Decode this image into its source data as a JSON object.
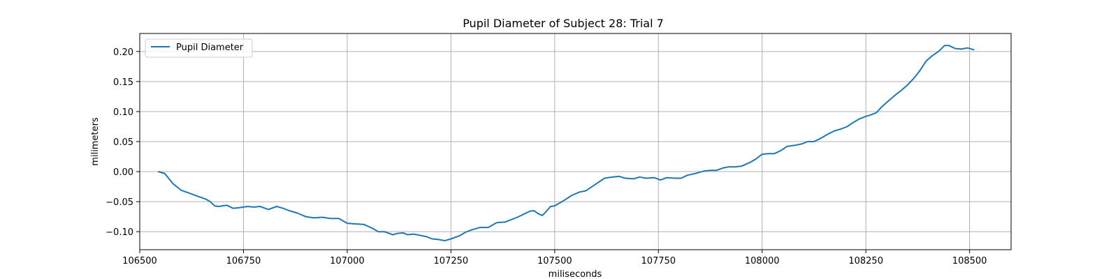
{
  "chart_data": {
    "type": "line",
    "title": "Pupil Diameter of Subject 28: Trial 7",
    "xlabel": "miliseconds",
    "ylabel": "milimeters",
    "xlim": [
      106500,
      108600
    ],
    "ylim": [
      -0.13,
      0.23
    ],
    "x_ticks": [
      106500,
      106750,
      107000,
      107250,
      107500,
      107750,
      108000,
      108250,
      108500
    ],
    "y_ticks": [
      -0.1,
      -0.05,
      0.0,
      0.05,
      0.1,
      0.15,
      0.2
    ],
    "x_tick_labels": [
      "106500",
      "106750",
      "107000",
      "107250",
      "107500",
      "107750",
      "108000",
      "108250",
      "108500"
    ],
    "y_tick_labels": [
      "−0.10",
      "−0.05",
      "0.00",
      "0.05",
      "0.10",
      "0.15",
      "0.20"
    ],
    "grid": true,
    "legend_position": "top-left",
    "series": [
      {
        "name": "Pupil Diameter",
        "color": "#1f77b4",
        "x": [
          106545,
          106560,
          106580,
          106600,
          106620,
          106640,
          106660,
          106670,
          106680,
          106690,
          106710,
          106725,
          106740,
          106760,
          106775,
          106790,
          106810,
          106830,
          106845,
          106860,
          106880,
          106900,
          106920,
          106940,
          106960,
          106980,
          107000,
          107020,
          107040,
          107060,
          107075,
          107090,
          107110,
          107120,
          107135,
          107145,
          107160,
          107175,
          107190,
          107205,
          107220,
          107235,
          107250,
          107270,
          107285,
          107300,
          107320,
          107340,
          107360,
          107380,
          107395,
          107410,
          107425,
          107440,
          107450,
          107460,
          107470,
          107480,
          107490,
          107500,
          107520,
          107540,
          107560,
          107575,
          107590,
          107605,
          107620,
          107640,
          107655,
          107670,
          107690,
          107705,
          107720,
          107740,
          107755,
          107770,
          107790,
          107805,
          107820,
          107840,
          107860,
          107875,
          107890,
          107905,
          107920,
          107935,
          107950,
          107970,
          107985,
          108000,
          108015,
          108030,
          108045,
          108060,
          108080,
          108095,
          108110,
          108125,
          108140,
          108160,
          108175,
          108190,
          108205,
          108220,
          108235,
          108250,
          108260,
          108275,
          108290,
          108305,
          108320,
          108335,
          108350,
          108365,
          108380,
          108395,
          108410,
          108425,
          108440,
          108450,
          108465,
          108480,
          108495,
          108510
        ],
        "values": [
          0.0,
          -0.003,
          -0.02,
          -0.031,
          -0.036,
          -0.041,
          -0.046,
          -0.05,
          -0.057,
          -0.058,
          -0.056,
          -0.061,
          -0.06,
          -0.058,
          -0.059,
          -0.058,
          -0.063,
          -0.058,
          -0.061,
          -0.065,
          -0.069,
          -0.075,
          -0.077,
          -0.076,
          -0.078,
          -0.078,
          -0.086,
          -0.087,
          -0.088,
          -0.094,
          -0.1,
          -0.1,
          -0.105,
          -0.103,
          -0.102,
          -0.105,
          -0.104,
          -0.106,
          -0.108,
          -0.112,
          -0.113,
          -0.115,
          -0.112,
          -0.107,
          -0.101,
          -0.097,
          -0.093,
          -0.093,
          -0.085,
          -0.084,
          -0.08,
          -0.076,
          -0.071,
          -0.066,
          -0.065,
          -0.07,
          -0.073,
          -0.066,
          -0.058,
          -0.057,
          -0.049,
          -0.04,
          -0.034,
          -0.032,
          -0.025,
          -0.018,
          -0.011,
          -0.009,
          -0.008,
          -0.011,
          -0.012,
          -0.009,
          -0.011,
          -0.01,
          -0.014,
          -0.01,
          -0.011,
          -0.011,
          -0.006,
          -0.003,
          0.001,
          0.002,
          0.002,
          0.006,
          0.008,
          0.008,
          0.009,
          0.015,
          0.021,
          0.029,
          0.03,
          0.03,
          0.035,
          0.042,
          0.044,
          0.046,
          0.05,
          0.05,
          0.055,
          0.063,
          0.068,
          0.071,
          0.075,
          0.082,
          0.088,
          0.092,
          0.094,
          0.098,
          0.109,
          0.118,
          0.127,
          0.135,
          0.144,
          0.155,
          0.168,
          0.184,
          0.193,
          0.2,
          0.21,
          0.21,
          0.205,
          0.204,
          0.206,
          0.203
        ]
      }
    ]
  }
}
